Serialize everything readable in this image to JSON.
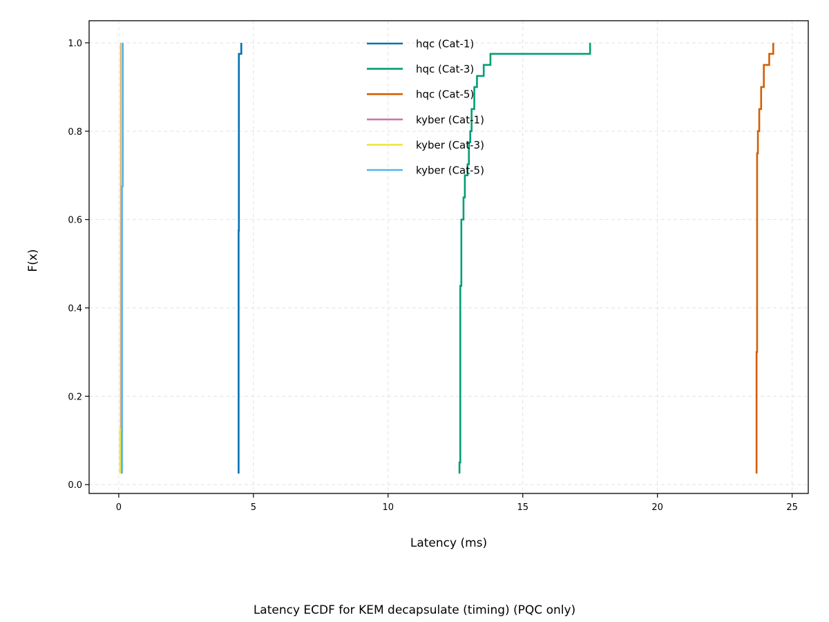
{
  "chart_data": {
    "type": "line",
    "step": true,
    "title": "",
    "caption": "Latency ECDF for KEM decapsulate (timing) (PQC only)",
    "xlabel": "Latency (ms)",
    "ylabel": "F(x)",
    "xlim": [
      -1.1,
      25.6
    ],
    "ylim": [
      -0.02,
      1.05
    ],
    "xticks": [
      0,
      5,
      10,
      15,
      20,
      25
    ],
    "yticks": [
      0.0,
      0.2,
      0.4,
      0.6,
      0.8,
      1.0
    ],
    "xtick_labels": [
      "0",
      "5",
      "10",
      "15",
      "20",
      "25"
    ],
    "ytick_labels": [
      "0.0",
      "0.2",
      "0.4",
      "0.6",
      "0.8",
      "1.0"
    ],
    "grid": true,
    "legend_position": "top-center",
    "series": [
      {
        "name": "hqc (Cat-1)",
        "color": "#0072B2",
        "points": [
          [
            4.45,
            0.025
          ],
          [
            4.45,
            0.575
          ],
          [
            4.46,
            0.575
          ],
          [
            4.46,
            0.975
          ],
          [
            4.55,
            0.975
          ],
          [
            4.55,
            1.0
          ]
        ]
      },
      {
        "name": "hqc (Cat-3)",
        "color": "#009E73",
        "points": [
          [
            12.65,
            0.025
          ],
          [
            12.65,
            0.05
          ],
          [
            12.68,
            0.05
          ],
          [
            12.68,
            0.45
          ],
          [
            12.72,
            0.45
          ],
          [
            12.72,
            0.6
          ],
          [
            12.8,
            0.6
          ],
          [
            12.8,
            0.65
          ],
          [
            12.85,
            0.65
          ],
          [
            12.85,
            0.7
          ],
          [
            12.95,
            0.7
          ],
          [
            12.95,
            0.725
          ],
          [
            13.0,
            0.725
          ],
          [
            13.0,
            0.775
          ],
          [
            13.05,
            0.775
          ],
          [
            13.05,
            0.8
          ],
          [
            13.1,
            0.8
          ],
          [
            13.1,
            0.85
          ],
          [
            13.2,
            0.85
          ],
          [
            13.2,
            0.9
          ],
          [
            13.3,
            0.9
          ],
          [
            13.3,
            0.925
          ],
          [
            13.55,
            0.925
          ],
          [
            13.55,
            0.95
          ],
          [
            13.8,
            0.95
          ],
          [
            13.8,
            0.975
          ],
          [
            17.5,
            0.975
          ],
          [
            17.5,
            1.0
          ]
        ]
      },
      {
        "name": "hqc (Cat-5)",
        "color": "#D55E00",
        "points": [
          [
            23.68,
            0.025
          ],
          [
            23.68,
            0.3
          ],
          [
            23.7,
            0.3
          ],
          [
            23.7,
            0.75
          ],
          [
            23.73,
            0.75
          ],
          [
            23.73,
            0.8
          ],
          [
            23.78,
            0.8
          ],
          [
            23.78,
            0.85
          ],
          [
            23.85,
            0.85
          ],
          [
            23.85,
            0.9
          ],
          [
            23.95,
            0.9
          ],
          [
            23.95,
            0.95
          ],
          [
            24.15,
            0.95
          ],
          [
            24.15,
            0.975
          ],
          [
            24.3,
            0.975
          ],
          [
            24.3,
            1.0
          ]
        ]
      },
      {
        "name": "kyber (Cat-1)",
        "color": "#CC79A7",
        "points": [
          [
            0.08,
            0.025
          ],
          [
            0.08,
            1.0
          ]
        ]
      },
      {
        "name": "kyber (Cat-3)",
        "color": "#F0E442",
        "points": [
          [
            0.05,
            0.025
          ],
          [
            0.05,
            0.125
          ],
          [
            0.1,
            0.125
          ],
          [
            0.1,
            1.0
          ]
        ]
      },
      {
        "name": "kyber (Cat-5)",
        "color": "#56B4E9",
        "points": [
          [
            0.12,
            0.025
          ],
          [
            0.12,
            0.675
          ],
          [
            0.15,
            0.675
          ],
          [
            0.15,
            1.0
          ]
        ]
      }
    ]
  }
}
